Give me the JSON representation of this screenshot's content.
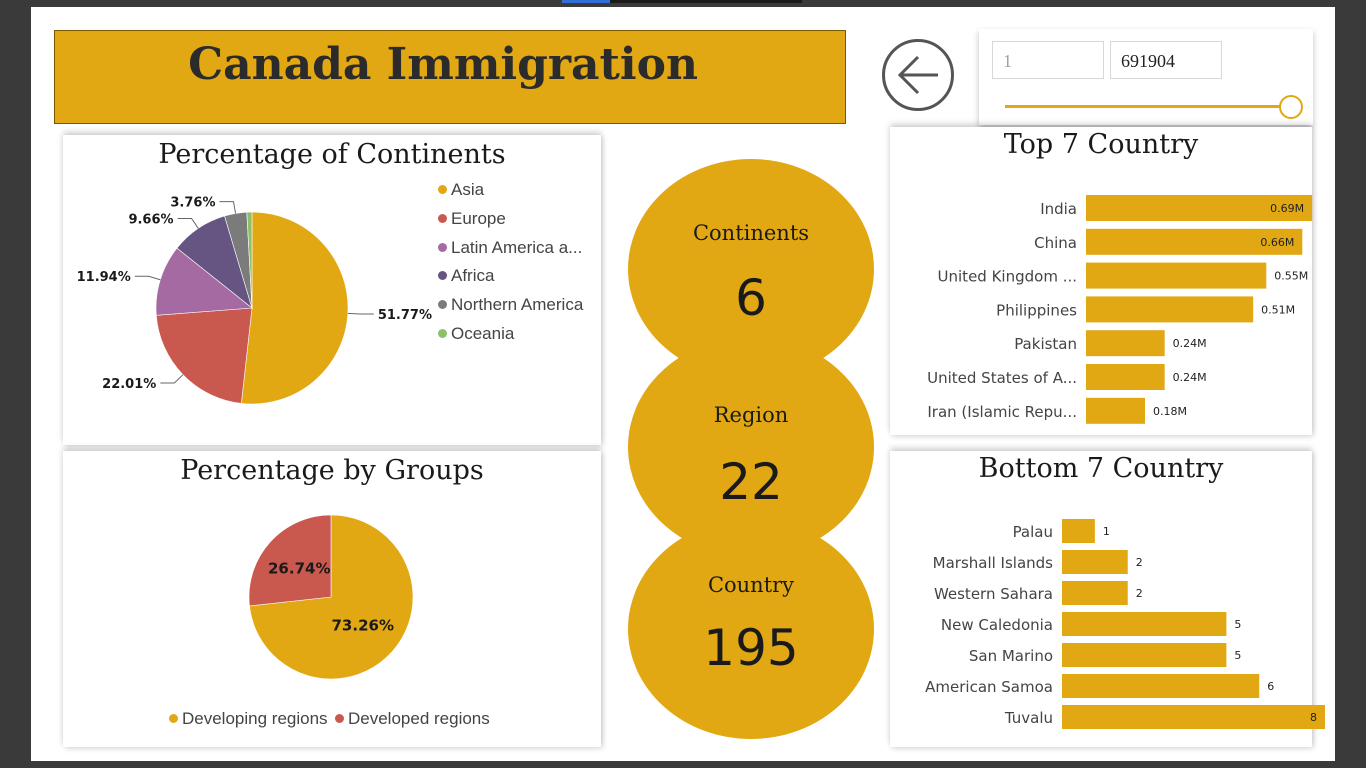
{
  "header": {
    "title": "Canada Immigration",
    "back_icon": "arrow-left-icon"
  },
  "slicer": {
    "min_value": "1",
    "max_value": "691904",
    "position": 1.0
  },
  "colors": {
    "accent": "#e2a813",
    "asia": "#e2a813",
    "europe": "#c9594e",
    "latin_america": "#a56aa2",
    "africa": "#665583",
    "northern_america": "#7b7b7b",
    "oceania": "#8cc16a"
  },
  "kpis": {
    "continents": {
      "label": "Continents",
      "value": "6"
    },
    "region": {
      "label": "Region",
      "value": "22"
    },
    "country": {
      "label": "Country",
      "value": "195"
    }
  },
  "chart_data": [
    {
      "type": "pie",
      "title": "Percentage of Continents",
      "categories": [
        "Asia",
        "Europe",
        "Latin America a...",
        "Africa",
        "Northern America",
        "Oceania"
      ],
      "values": [
        51.77,
        22.01,
        11.94,
        9.66,
        3.76,
        0.86
      ],
      "labels": [
        "51.77%",
        "22.01%",
        "11.94%",
        "9.66%",
        "3.76%",
        ""
      ],
      "colors": [
        "#e2a813",
        "#c9594e",
        "#a56aa2",
        "#665583",
        "#7b7b7b",
        "#8cc16a"
      ],
      "legend": "right"
    },
    {
      "type": "pie",
      "title": "Percentage by Groups",
      "categories": [
        "Developing regions",
        "Developed regions"
      ],
      "values": [
        73.26,
        26.74
      ],
      "labels": [
        "73.26%",
        "26.74%"
      ],
      "colors": [
        "#e2a813",
        "#c9594e"
      ],
      "legend": "bottom"
    },
    {
      "type": "bar",
      "orientation": "horizontal",
      "title": "Top 7 Country",
      "categories": [
        "India",
        "China",
        "United Kingdom ...",
        "Philippines",
        "Pakistan",
        "United States of A...",
        "Iran (Islamic Repu..."
      ],
      "values": [
        0.69,
        0.66,
        0.55,
        0.51,
        0.24,
        0.24,
        0.18
      ],
      "labels": [
        "0.69M",
        "0.66M",
        "0.55M",
        "0.51M",
        "0.24M",
        "0.24M",
        "0.18M"
      ],
      "xlim": [
        0,
        0.72
      ]
    },
    {
      "type": "bar",
      "orientation": "horizontal",
      "title": "Bottom 7 Country",
      "categories": [
        "Palau",
        "Marshall Islands",
        "Western Sahara",
        "New Caledonia",
        "San Marino",
        "American Samoa",
        "Tuvalu"
      ],
      "values": [
        1,
        2,
        2,
        5,
        5,
        6,
        8
      ],
      "labels": [
        "1",
        "2",
        "2",
        "5",
        "5",
        "6",
        "8"
      ],
      "xlim": [
        0,
        8
      ]
    }
  ]
}
